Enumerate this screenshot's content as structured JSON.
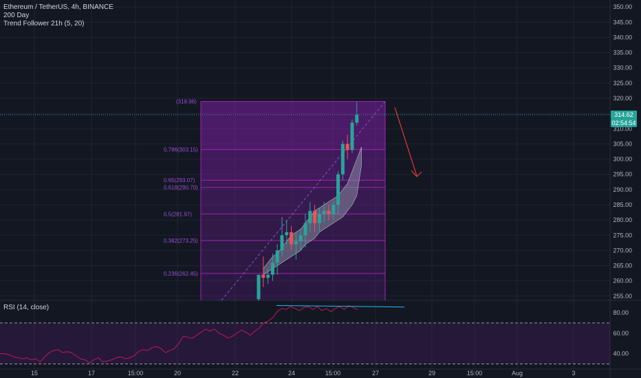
{
  "header": {
    "symbol_line": "Ethereum / TetherUS, 4h, BINANCE",
    "indicator_1": "200 Day",
    "indicator_2": "Trend Follower 21h (5, 20)",
    "rsi_label": "RSI (14, close)"
  },
  "price_axis": {
    "ticks": [
      "350.00",
      "345.00",
      "340.00",
      "335.00",
      "330.00",
      "325.00",
      "320.00",
      "315.00",
      "310.00",
      "305.00",
      "300.00",
      "295.00",
      "290.00",
      "285.00",
      "280.00",
      "275.00",
      "270.00",
      "265.00",
      "260.00",
      "255.00"
    ],
    "current_price": "314.62",
    "countdown": "02:54:54",
    "current_badge_color": "#26a69a"
  },
  "rsi_axis": {
    "ticks": [
      "80.00",
      "60.00",
      "40.00"
    ]
  },
  "time_axis": {
    "ticks": [
      "15",
      "17",
      "15:00",
      "20",
      "22",
      "24",
      "15:00",
      "27",
      "29",
      "15:00",
      "Aug",
      "3"
    ]
  },
  "fib_levels": [
    {
      "label": "(318.96)",
      "price": 318.96
    },
    {
      "label": "0.786(303.15)",
      "price": 303.15
    },
    {
      "label": "0.65(293.07)",
      "price": 293.07
    },
    {
      "label": "0.618(290.70)",
      "price": 290.7
    },
    {
      "label": "0.5(281.97)",
      "price": 281.97
    },
    {
      "label": "0.382(273.25)",
      "price": 273.25
    },
    {
      "label": "0.236(262.45)",
      "price": 262.45
    }
  ],
  "colors": {
    "background": "#131722",
    "up_candle": "#26a69a",
    "down_candle": "#ef5350",
    "fib_fill": "#7b1fa2",
    "rsi_line": "#c2185b",
    "arrow": "#e53935"
  },
  "chart_data": {
    "type": "candlestick",
    "title": "Ethereum / TetherUS, 4h, BINANCE",
    "ylim": [
      253.5,
      352
    ],
    "rsi_ylim": [
      25,
      92
    ],
    "x_labels": [
      "15",
      "17",
      "15:00",
      "20",
      "22",
      "24",
      "15:00",
      "27",
      "29",
      "15:00",
      "Aug",
      "3"
    ],
    "candles": [
      {
        "o": 254,
        "h": 262,
        "l": 253.5,
        "c": 262
      },
      {
        "o": 262,
        "h": 268,
        "l": 258,
        "c": 261
      },
      {
        "o": 261,
        "h": 264,
        "l": 259,
        "c": 262
      },
      {
        "o": 262,
        "h": 269,
        "l": 260,
        "c": 266
      },
      {
        "o": 266,
        "h": 272,
        "l": 262,
        "c": 270
      },
      {
        "o": 270,
        "h": 281,
        "l": 268,
        "c": 275
      },
      {
        "o": 275,
        "h": 280,
        "l": 272,
        "c": 276
      },
      {
        "o": 276,
        "h": 278,
        "l": 270,
        "c": 272
      },
      {
        "o": 272,
        "h": 276,
        "l": 267,
        "c": 273
      },
      {
        "o": 273,
        "h": 277,
        "l": 270,
        "c": 275
      },
      {
        "o": 275,
        "h": 282,
        "l": 271,
        "c": 279
      },
      {
        "o": 279,
        "h": 286,
        "l": 276,
        "c": 283
      },
      {
        "o": 283,
        "h": 285,
        "l": 276,
        "c": 279
      },
      {
        "o": 279,
        "h": 284,
        "l": 276,
        "c": 282
      },
      {
        "o": 282,
        "h": 286,
        "l": 279,
        "c": 283
      },
      {
        "o": 283,
        "h": 285,
        "l": 280,
        "c": 282
      },
      {
        "o": 282,
        "h": 286,
        "l": 280,
        "c": 285
      },
      {
        "o": 285,
        "h": 296,
        "l": 282,
        "c": 295
      },
      {
        "o": 295,
        "h": 306,
        "l": 293,
        "c": 305
      },
      {
        "o": 305,
        "h": 308,
        "l": 300,
        "c": 303
      },
      {
        "o": 303,
        "h": 313,
        "l": 302,
        "c": 312
      },
      {
        "o": 312,
        "h": 318.96,
        "l": 311,
        "c": 314.62
      }
    ],
    "rsi_values": [
      40,
      40,
      39,
      37,
      36,
      35,
      36,
      34,
      35,
      32,
      37,
      41,
      43,
      44,
      41,
      42,
      41,
      38,
      35,
      34,
      31,
      34,
      36,
      32,
      33,
      34,
      36,
      37,
      35,
      36,
      38,
      42,
      44,
      43,
      46,
      47,
      45,
      41,
      43,
      45,
      50,
      57,
      56,
      55,
      58,
      61,
      64,
      62,
      64,
      60,
      58,
      55,
      57,
      60,
      63,
      61,
      58,
      62,
      65,
      70,
      72,
      75,
      81,
      84,
      83,
      86,
      84,
      82,
      85,
      86,
      83,
      86,
      82,
      84,
      81,
      84,
      86,
      83,
      87,
      85,
      83
    ]
  }
}
